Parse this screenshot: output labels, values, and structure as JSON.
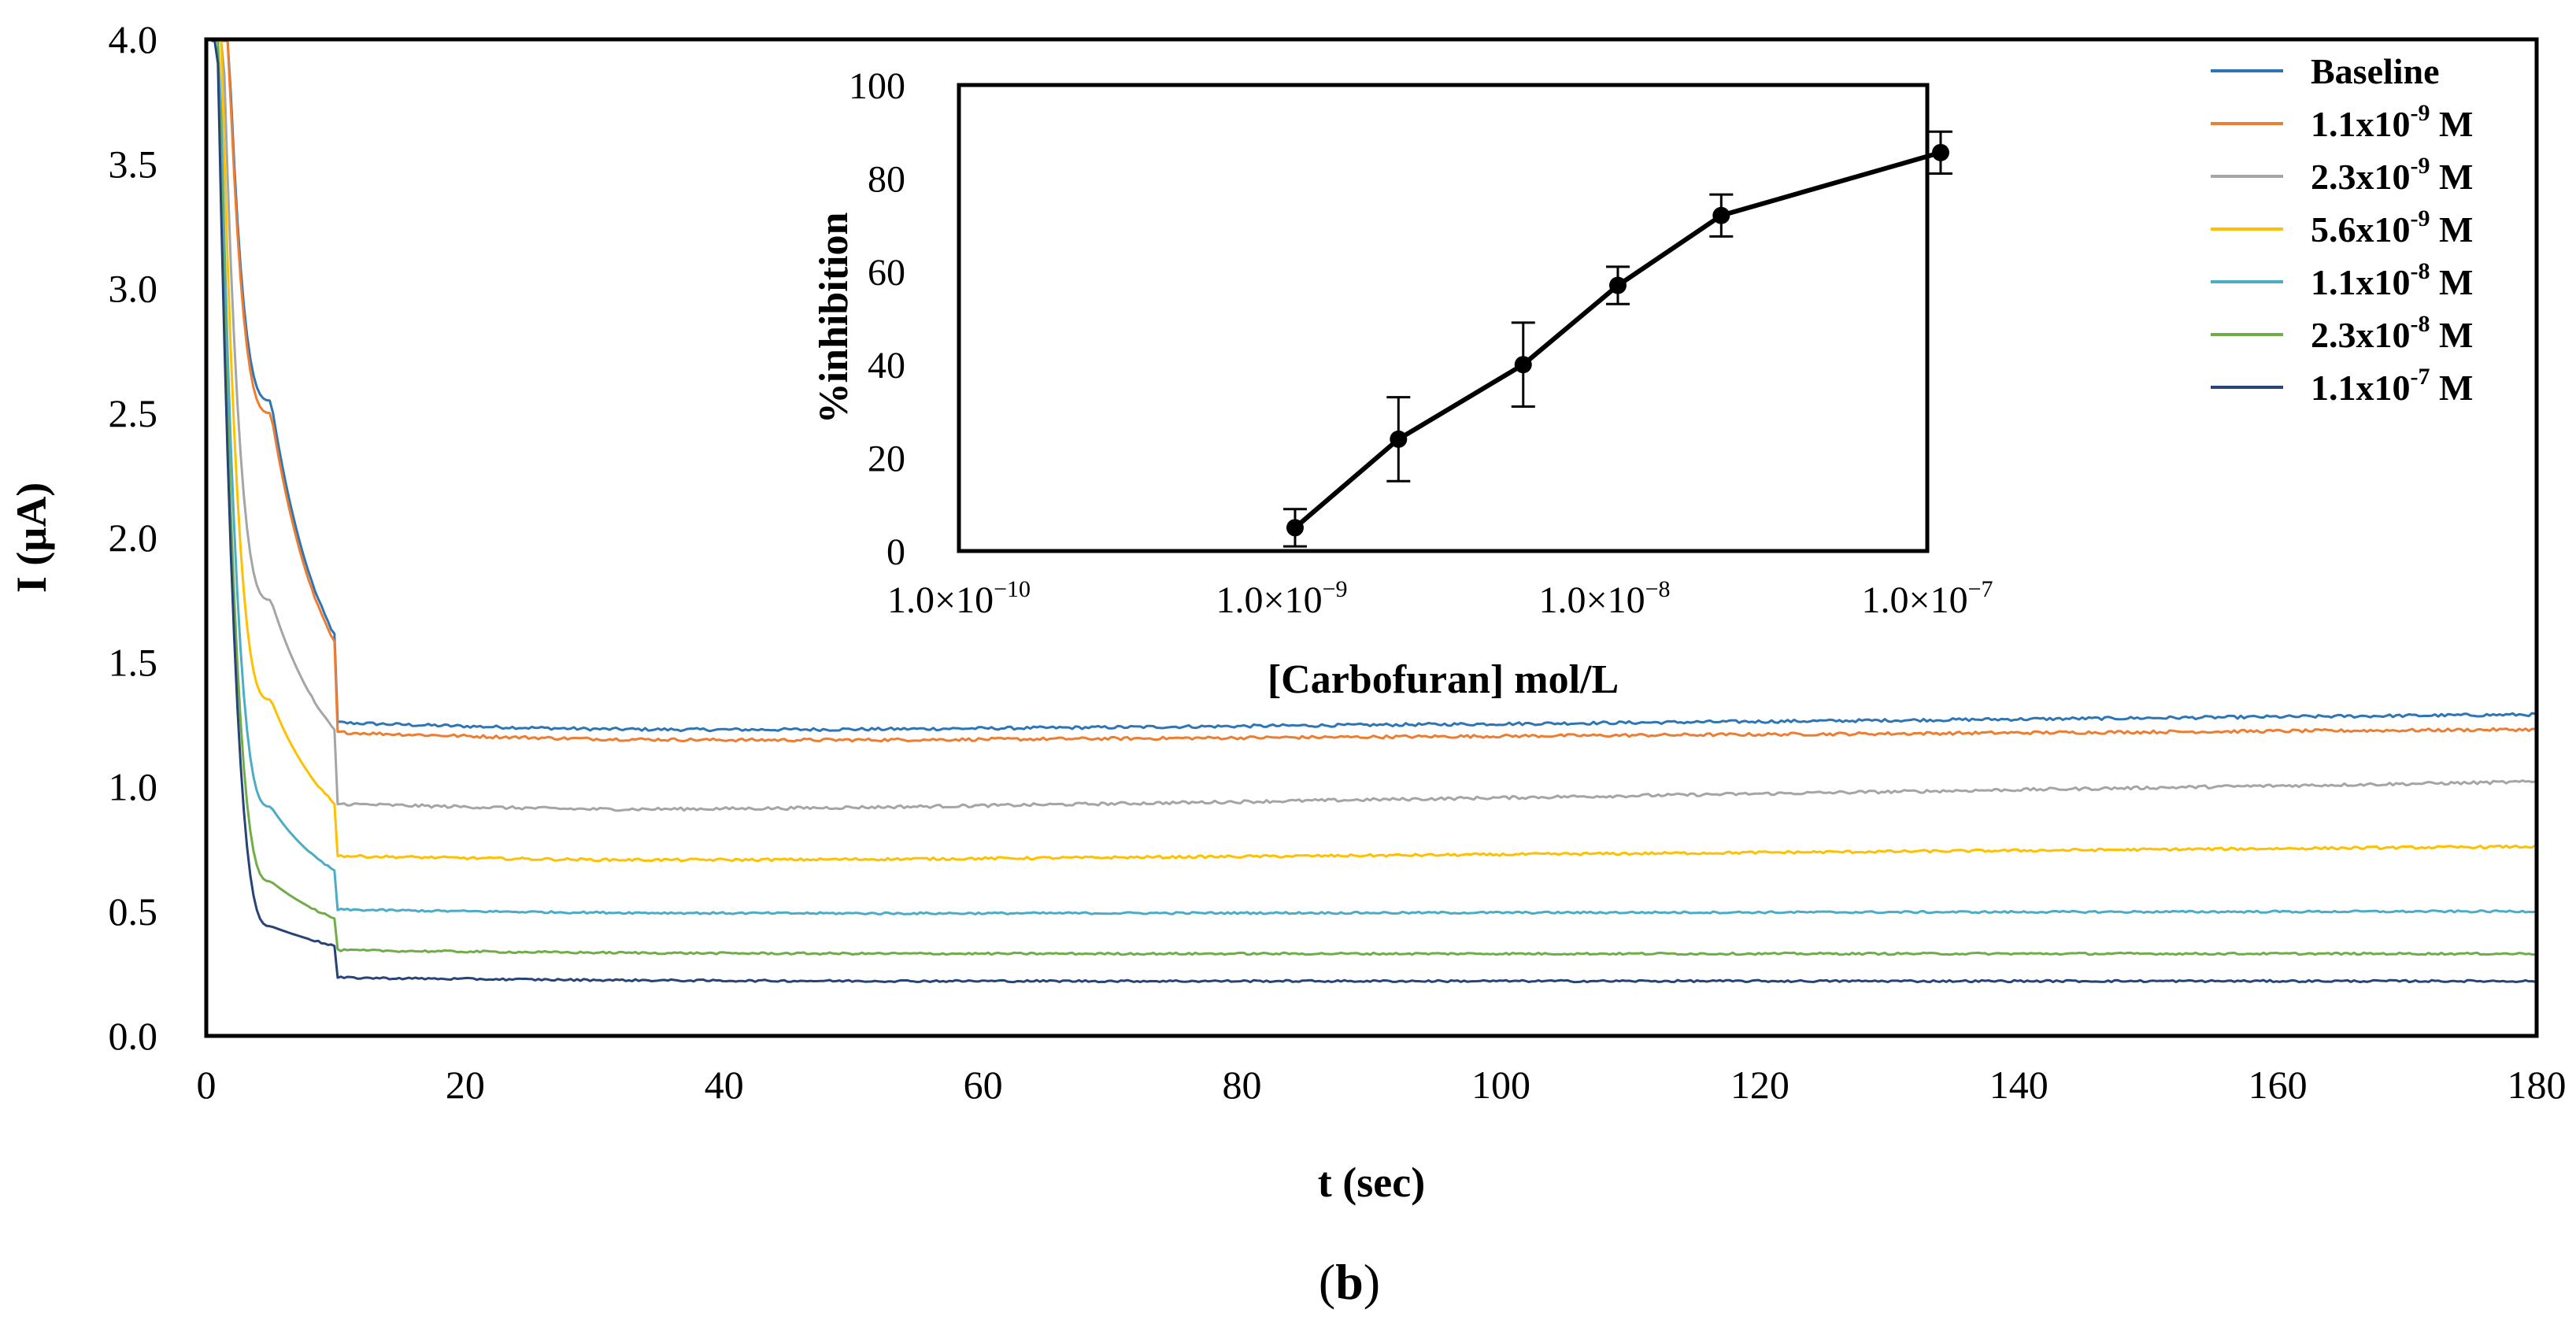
{
  "chart_data": [
    {
      "type": "line",
      "role": "main",
      "xlabel": "t (sec)",
      "ylabel": "I (µA)",
      "xlim": [
        0,
        180
      ],
      "ylim": [
        0,
        4.0
      ],
      "x_ticks": [
        0,
        20,
        40,
        60,
        80,
        100,
        120,
        140,
        160,
        180
      ],
      "y_ticks": [
        "0.0",
        "0.5",
        "1.0",
        "1.5",
        "2.0",
        "2.5",
        "3.0",
        "3.5",
        "4.0"
      ],
      "legend_position": "top-right",
      "series": [
        {
          "name": "Baseline",
          "label_base": "Baseline",
          "label_exp": "",
          "label_unit": "",
          "color": "#2e75b6",
          "steady": 1.22,
          "drift": 0.07,
          "i_at_5s": 2.55,
          "i_at_10s": 1.6,
          "noise": 0.006
        },
        {
          "name": "1.1x10-9 M",
          "label_base": "1.1x10",
          "label_exp": "-9",
          "label_unit": " M",
          "color": "#ed7d31",
          "steady": 1.18,
          "drift": 0.05,
          "i_at_5s": 2.5,
          "i_at_10s": 1.57,
          "noise": 0.006
        },
        {
          "name": "2.3x10-9 M",
          "label_base": "2.3x10",
          "label_exp": "-9",
          "label_unit": " M",
          "color": "#a5a5a5",
          "steady": 0.9,
          "drift": 0.12,
          "i_at_5s": 1.75,
          "i_at_10s": 1.22,
          "noise": 0.006
        },
        {
          "name": "5.6x10-9 M",
          "label_base": "5.6x10",
          "label_exp": "-9",
          "label_unit": " M",
          "color": "#ffc000",
          "steady": 0.7,
          "drift": 0.06,
          "i_at_5s": 1.35,
          "i_at_10s": 0.93,
          "noise": 0.005
        },
        {
          "name": "1.1x10-8 M",
          "label_base": "1.1x10",
          "label_exp": "-8",
          "label_unit": " M",
          "color": "#4bacc6",
          "steady": 0.49,
          "drift": 0.01,
          "i_at_5s": 0.92,
          "i_at_10s": 0.66,
          "noise": 0.004
        },
        {
          "name": "2.3x10-8 M",
          "label_base": "2.3x10",
          "label_exp": "-8",
          "label_unit": " M",
          "color": "#70ad47",
          "steady": 0.33,
          "drift": 0.0,
          "i_at_5s": 0.62,
          "i_at_10s": 0.47,
          "noise": 0.004
        },
        {
          "name": "1.1x10-7 M",
          "label_base": "1.1x10",
          "label_exp": "-7",
          "label_unit": " M",
          "color": "#264478",
          "steady": 0.22,
          "drift": 0.0,
          "i_at_5s": 0.44,
          "i_at_10s": 0.36,
          "noise": 0.004
        }
      ]
    },
    {
      "type": "scatter",
      "role": "inset",
      "xscale": "log",
      "xlabel": "[Carbofuran] mol/L",
      "ylabel": "%inhibition",
      "xlim": [
        1e-10,
        1e-07
      ],
      "ylim": [
        0,
        100
      ],
      "x_ticks": [
        {
          "value": 1e-10,
          "mantissa": "1.0×10",
          "exp": "−10"
        },
        {
          "value": 1e-09,
          "mantissa": "1.0×10",
          "exp": "−9"
        },
        {
          "value": 1e-08,
          "mantissa": "1.0×10",
          "exp": "−8"
        },
        {
          "value": 1e-07,
          "mantissa": "1.0×10",
          "exp": "−7"
        }
      ],
      "y_ticks": [
        "0",
        "20",
        "40",
        "60",
        "80",
        "100"
      ],
      "points": [
        {
          "x": 1.1e-09,
          "y": 5,
          "err": 4
        },
        {
          "x": 2.3e-09,
          "y": 24,
          "err": 9
        },
        {
          "x": 5.6e-09,
          "y": 40,
          "err": 9
        },
        {
          "x": 1.1e-08,
          "y": 57,
          "err": 4
        },
        {
          "x": 2.3e-08,
          "y": 72,
          "err": 4.5
        },
        {
          "x": 1.1e-07,
          "y": 85.5,
          "err": 4.5
        }
      ]
    }
  ],
  "panel_label": {
    "open": "(",
    "letter": "b",
    "close": ")"
  }
}
